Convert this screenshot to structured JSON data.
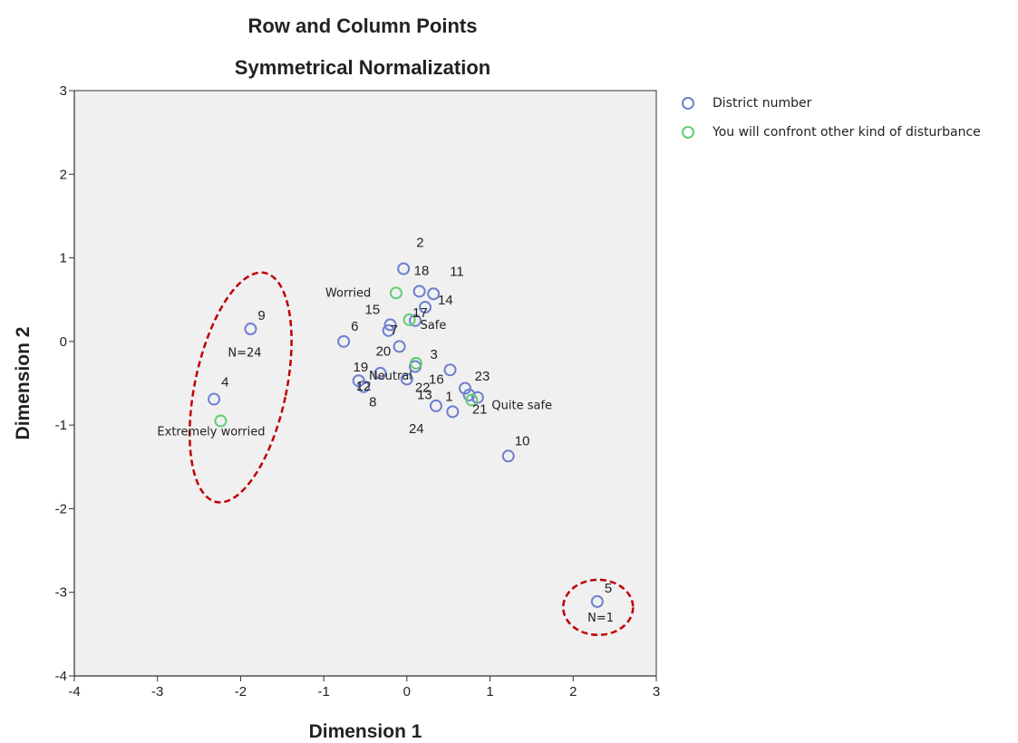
{
  "chart_data": {
    "type": "scatter",
    "title": "Row and Column Points",
    "subtitle": "Symmetrical Normalization",
    "xlabel": "Dimension 1",
    "ylabel": "Dimension 2",
    "xlim": [
      -4,
      3
    ],
    "ylim": [
      -4,
      3
    ],
    "xticks": [
      "-4",
      "-3",
      "-2",
      "-1",
      "0",
      "1",
      "2",
      "3"
    ],
    "yticks": [
      "-4",
      "-3",
      "-2",
      "-1",
      "0",
      "1",
      "2",
      "3"
    ],
    "legend_position": "top-right-outside",
    "series": [
      {
        "name": "District number",
        "color": "#6f7fcf",
        "points": [
          {
            "label": "1",
            "x": 0.55,
            "y": -0.84
          },
          {
            "label": "2",
            "x": -0.04,
            "y": 0.87
          },
          {
            "label": "3",
            "x": 0.52,
            "y": -0.34
          },
          {
            "label": "4",
            "x": -2.32,
            "y": -0.69
          },
          {
            "label": "5",
            "x": 2.29,
            "y": -3.11
          },
          {
            "label": "6",
            "x": -0.76,
            "y": 0.0
          },
          {
            "label": "7",
            "x": -0.22,
            "y": 0.13
          },
          {
            "label": "8",
            "x": -0.52,
            "y": -0.54
          },
          {
            "label": "9",
            "x": -1.88,
            "y": 0.15
          },
          {
            "label": "10",
            "x": 1.22,
            "y": -1.37
          },
          {
            "label": "11",
            "x": 0.32,
            "y": 0.57
          },
          {
            "label": "12",
            "x": -0.58,
            "y": -0.47
          },
          {
            "label": "13",
            "x": 0.1,
            "y": -0.3
          },
          {
            "label": "14",
            "x": 0.22,
            "y": 0.41
          },
          {
            "label": "15",
            "x": -0.2,
            "y": 0.2
          },
          {
            "label": "16",
            "x": 0.7,
            "y": -0.56
          },
          {
            "label": "17",
            "x": 0.1,
            "y": 0.25
          },
          {
            "label": "18",
            "x": 0.15,
            "y": 0.6
          },
          {
            "label": "19",
            "x": -0.32,
            "y": -0.38
          },
          {
            "label": "20",
            "x": -0.09,
            "y": -0.06
          },
          {
            "label": "21",
            "x": 0.85,
            "y": -0.67
          },
          {
            "label": "22",
            "x": 0.0,
            "y": -0.45
          },
          {
            "label": "23",
            "x": 0.75,
            "y": -0.64
          },
          {
            "label": "24",
            "x": 0.35,
            "y": -0.77
          }
        ]
      },
      {
        "name": "You will confront other kind of disturbance",
        "color": "#5fce73",
        "points": [
          {
            "label": "Extremely worried",
            "x": -2.24,
            "y": -0.95
          },
          {
            "label": "Worried",
            "x": -0.13,
            "y": 0.58
          },
          {
            "label": "Safe",
            "x": 0.03,
            "y": 0.26
          },
          {
            "label": "Neutral",
            "x": 0.11,
            "y": -0.26
          },
          {
            "label": "Quite safe",
            "x": 0.78,
            "y": -0.7
          }
        ]
      }
    ],
    "annotations": [
      {
        "label": "N=24",
        "x": -1.95,
        "y": -0.18
      },
      {
        "label": "N=1",
        "x": 2.33,
        "y": -3.35
      }
    ],
    "ellipses": [
      {
        "cx": -2.0,
        "cy": -0.55,
        "rx": 0.55,
        "ry": 1.4,
        "angle": 12
      },
      {
        "cx": 2.3,
        "cy": -3.18,
        "rx": 0.42,
        "ry": 0.33,
        "angle": 0
      }
    ]
  }
}
